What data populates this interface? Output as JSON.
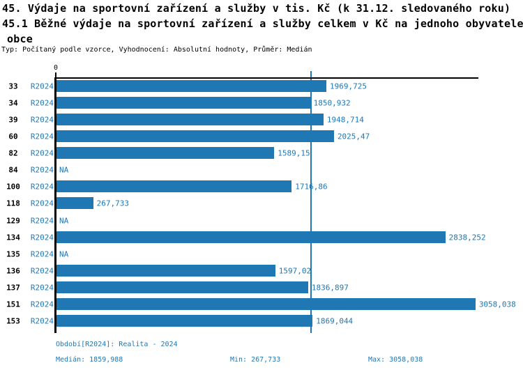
{
  "chart_data": {
    "type": "bar",
    "orientation": "horizontal",
    "title_line1": "45. Výdaje na sportovní zařízení a služby v tis. Kč (k 31.12. sledovaného roku)",
    "title_line2": "45.1 Běžné výdaje na sportovní zařízení a služby celkem v Kč na jednoho obyvatele",
    "title_line3": "obce",
    "subtitle": "Typ: Počítaný podle vzorce, Vyhodnocení: Absolutní hodnoty, Průměr: Medián",
    "axis_zero_label": "0",
    "xlim": [
      0,
      3084
    ],
    "bar_color": "#1f77b4",
    "accent_text_color": "#1f77b4",
    "median_value": 1859.988,
    "min_value": 267.733,
    "max_value": 3058.038,
    "rows": [
      {
        "category": "33",
        "period": "R2024",
        "value": 1969.725,
        "value_label": "1969,725"
      },
      {
        "category": "34",
        "period": "R2024",
        "value": 1850.932,
        "value_label": "1850,932"
      },
      {
        "category": "39",
        "period": "R2024",
        "value": 1948.714,
        "value_label": "1948,714"
      },
      {
        "category": "60",
        "period": "R2024",
        "value": 2025.47,
        "value_label": "2025,47"
      },
      {
        "category": "82",
        "period": "R2024",
        "value": 1589.15,
        "value_label": "1589,15"
      },
      {
        "category": "84",
        "period": "R2024",
        "value": null,
        "value_label": "NA"
      },
      {
        "category": "100",
        "period": "R2024",
        "value": 1716.86,
        "value_label": "1716,86"
      },
      {
        "category": "118",
        "period": "R2024",
        "value": 267.733,
        "value_label": "267,733"
      },
      {
        "category": "129",
        "period": "R2024",
        "value": null,
        "value_label": "NA"
      },
      {
        "category": "134",
        "period": "R2024",
        "value": 2838.252,
        "value_label": "2838,252"
      },
      {
        "category": "135",
        "period": "R2024",
        "value": null,
        "value_label": "NA"
      },
      {
        "category": "136",
        "period": "R2024",
        "value": 1597.02,
        "value_label": "1597,02"
      },
      {
        "category": "137",
        "period": "R2024",
        "value": 1836.897,
        "value_label": "1836,897"
      },
      {
        "category": "151",
        "period": "R2024",
        "value": 3058.038,
        "value_label": "3058,038"
      },
      {
        "category": "153",
        "period": "R2024",
        "value": 1869.044,
        "value_label": "1869,044"
      }
    ],
    "footer": {
      "period_line": "Období[R2024]: Realita - 2024",
      "median_label": "Medián: 1859,988",
      "min_label": "Min: 267,733",
      "max_label": "Max: 3058,038"
    }
  }
}
